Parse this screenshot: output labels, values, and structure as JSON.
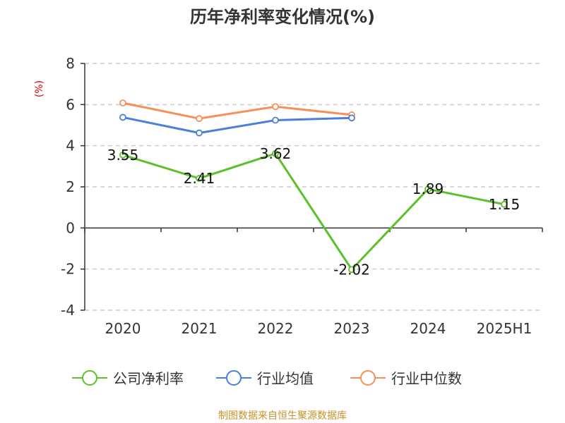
{
  "chart_data": {
    "type": "line",
    "title": "历年净利率变化情况(%)",
    "ylabel": "(%)",
    "xlabel": "",
    "categories": [
      "2020",
      "2021",
      "2022",
      "2023",
      "2024",
      "2025H1"
    ],
    "ylim": [
      -4,
      8
    ],
    "yticks": [
      -4,
      -2,
      0,
      2,
      4,
      6,
      8
    ],
    "grid": true,
    "legend_position": "bottom",
    "series": [
      {
        "name": "公司净利率",
        "color": "#5cc02a",
        "values": [
          3.55,
          2.41,
          3.62,
          -2.02,
          1.89,
          1.15
        ],
        "data_labels": [
          "3.55",
          "2.41",
          "3.62",
          "-2.02",
          "1.89",
          "1.15"
        ]
      },
      {
        "name": "行业均值",
        "color": "#4a7fdc",
        "values": [
          5.38,
          4.62,
          5.24,
          5.35,
          null,
          null
        ]
      },
      {
        "name": "行业中位数",
        "color": "#f79058",
        "values": [
          6.08,
          5.32,
          5.9,
          5.5,
          null,
          null
        ]
      }
    ]
  },
  "source_note": "制图数据来自恒生聚源数据库"
}
